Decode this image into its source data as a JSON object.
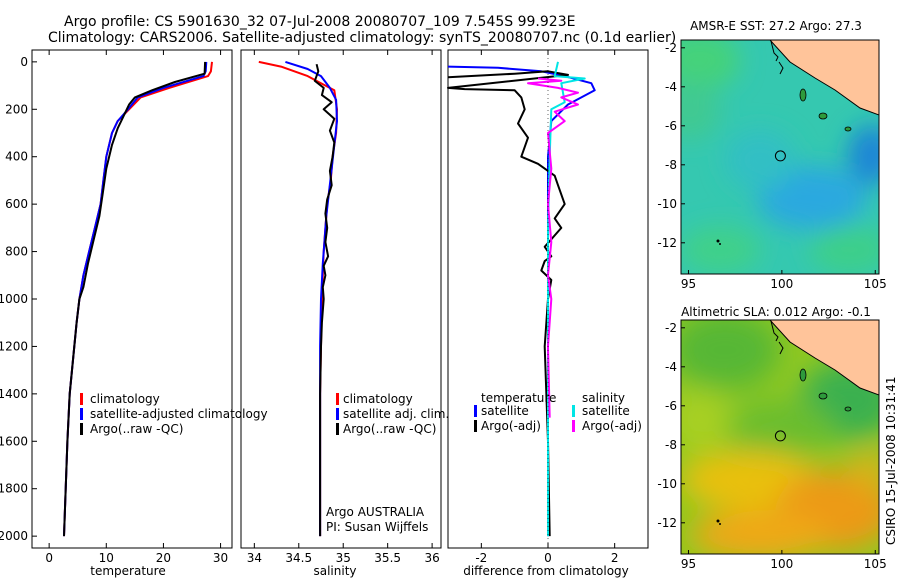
{
  "title_line1": "Argo profile: CS 5901630_32 07-Jul-2008 20080707_109 7.545S 99.923E",
  "title_line2": "Climatology: CARS2006. Satellite-adjusted climatology: synTS_20080707.nc (0.1d earlier)",
  "side_text": "CSIRO 15-Jul-2008 10:31:41",
  "colors": {
    "climatology": "#ff0000",
    "satellite": "#0000ff",
    "argo": "#000000",
    "sal_satellite": "#00e5e5",
    "sal_argo": "#ff00ff"
  },
  "chart_data": [
    {
      "type": "line",
      "id": "temperature",
      "xlabel": "temperature",
      "xlim": [
        -3,
        32
      ],
      "ylim": [
        -50,
        2050
      ],
      "yreversed": true,
      "xticks": [
        "0",
        "10",
        "20",
        "30"
      ],
      "xtick_values": [
        0,
        10,
        20,
        30
      ],
      "yticks": [
        "0",
        "200",
        "400",
        "600",
        "800",
        "1000",
        "1200",
        "1400",
        "1600",
        "1800",
        "2000"
      ],
      "ytick_values": [
        0,
        200,
        400,
        600,
        800,
        1000,
        1200,
        1400,
        1600,
        1800,
        2000
      ],
      "legend": [
        "climatology",
        "satellite-adjusted climatology",
        "Argo(..raw -QC)"
      ],
      "series": [
        {
          "name": "climatology",
          "color": "red",
          "x": [
            28.5,
            28.3,
            27.8,
            21,
            16,
            14,
            12,
            11,
            10,
            9.5,
            9,
            8,
            7,
            6,
            5.3,
            4.8,
            4.4,
            4,
            3.6,
            3.2,
            2.9,
            2.6
          ],
          "y": [
            0,
            40,
            60,
            110,
            150,
            200,
            250,
            300,
            400,
            500,
            600,
            700,
            800,
            900,
            1000,
            1100,
            1200,
            1300,
            1400,
            1600,
            1800,
            2000
          ]
        },
        {
          "name": "satellite-adjusted climatology",
          "color": "blue",
          "x": [
            27.5,
            27.4,
            27,
            20,
            15.5,
            13.8,
            12,
            11,
            10,
            9.5,
            9,
            8,
            7,
            6,
            5.3,
            4.8,
            4.4,
            4,
            3.6,
            3.2,
            2.9,
            2.6
          ],
          "y": [
            0,
            40,
            60,
            110,
            150,
            200,
            250,
            300,
            400,
            500,
            600,
            700,
            800,
            900,
            1000,
            1100,
            1200,
            1300,
            1400,
            1600,
            1800,
            2000
          ]
        },
        {
          "name": "Argo(..raw -QC)",
          "color": "black",
          "x": [
            27.3,
            27.2,
            22,
            18,
            15,
            14,
            13,
            12,
            11,
            10,
            9.4,
            8.8,
            7.8,
            6.8,
            6,
            5.3,
            4.8,
            4.4,
            4,
            3.6,
            3.2,
            2.9,
            2.6
          ],
          "y": [
            0,
            50,
            85,
            120,
            150,
            180,
            230,
            280,
            350,
            450,
            550,
            650,
            750,
            850,
            950,
            1000,
            1100,
            1200,
            1300,
            1400,
            1600,
            1800,
            2000
          ]
        }
      ]
    },
    {
      "type": "line",
      "id": "salinity",
      "xlabel": "salinity",
      "xlim": [
        33.85,
        36.1
      ],
      "ylim": [
        -50,
        2050
      ],
      "yreversed": true,
      "xticks": [
        "34",
        "34.5",
        "35",
        "35.5",
        "36"
      ],
      "xtick_values": [
        34,
        34.5,
        35,
        35.5,
        36
      ],
      "legend": [
        "climatology",
        "satellite adj. clim.",
        "Argo(..raw -QC)"
      ],
      "annotation": [
        "Argo AUSTRALIA",
        "PI: Susan Wijffels"
      ],
      "series": [
        {
          "name": "climatology",
          "color": "red",
          "x": [
            34.05,
            34.3,
            34.6,
            34.75,
            34.9,
            34.93,
            34.92,
            34.88,
            34.86,
            34.82,
            34.8,
            34.78,
            34.76,
            34.75,
            34.74,
            34.74,
            34.74,
            34.74
          ],
          "y": [
            0,
            20,
            60,
            90,
            120,
            200,
            300,
            400,
            500,
            600,
            700,
            800,
            1000,
            1200,
            1400,
            1600,
            1800,
            2000
          ]
        },
        {
          "name": "satellite adj. clim.",
          "color": "blue",
          "x": [
            34.35,
            34.6,
            34.75,
            34.85,
            34.92,
            34.93,
            34.9,
            34.87,
            34.84,
            34.81,
            34.79,
            34.77,
            34.75,
            34.74,
            34.74,
            34.74,
            34.74,
            34.74
          ],
          "y": [
            0,
            30,
            60,
            110,
            160,
            250,
            350,
            450,
            550,
            650,
            750,
            850,
            1000,
            1200,
            1400,
            1600,
            1800,
            2000
          ]
        },
        {
          "name": "Argo(..raw -QC)",
          "color": "black",
          "x": [
            34.7,
            34.72,
            34.68,
            34.78,
            34.76,
            34.87,
            34.78,
            34.9,
            34.85,
            34.9,
            34.88,
            34.85,
            34.87,
            34.82,
            34.8,
            34.82,
            34.8,
            34.83,
            34.78,
            34.8,
            34.77,
            34.78,
            34.76,
            34.75,
            34.74,
            34.74,
            34.74
          ],
          "y": [
            10,
            40,
            80,
            110,
            140,
            170,
            200,
            240,
            290,
            340,
            400,
            460,
            520,
            580,
            640,
            700,
            760,
            820,
            860,
            900,
            950,
            1000,
            1100,
            1200,
            1400,
            1600,
            2000
          ]
        }
      ]
    },
    {
      "type": "line",
      "id": "difference",
      "xlabel": "difference from climatology",
      "xlim": [
        -3,
        3
      ],
      "ylim": [
        -50,
        2050
      ],
      "yreversed": true,
      "xticks": [
        "-2",
        "0",
        "2"
      ],
      "xtick_values": [
        -2,
        0,
        2
      ],
      "legend_left_title": "temperature",
      "legend_right_title": "salinity",
      "legend_left": [
        "satellite",
        "Argo(-adj)"
      ],
      "legend_right": [
        "satellite",
        "Argo(-adj)"
      ],
      "series": [
        {
          "name": "temperature satellite",
          "color": "blue",
          "x": [
            -3,
            -1.5,
            -0.2,
            0.5,
            1.3,
            1.4,
            0.6,
            0.1,
            0.0,
            0.0,
            0.0,
            0.0,
            0.0,
            0.0
          ],
          "y": [
            20,
            25,
            40,
            60,
            90,
            120,
            180,
            250,
            400,
            700,
            1000,
            1400,
            1800,
            2000
          ]
        },
        {
          "name": "temperature Argo(-adj)",
          "color": "black",
          "x": [
            -3,
            -1.0,
            0.0,
            0.6,
            -3,
            -2.5,
            -1.0,
            -0.8,
            -0.7,
            -0.9,
            -0.6,
            -0.8,
            -0.3,
            0.2,
            0.3,
            0.5,
            0.2,
            0.4,
            -0.1,
            0.1,
            -0.1,
            -0.2,
            0.1,
            0.0,
            -0.1,
            0.0,
            0.05
          ],
          "y": [
            65,
            50,
            40,
            55,
            110,
            115,
            120,
            150,
            200,
            260,
            320,
            400,
            430,
            480,
            520,
            600,
            660,
            700,
            780,
            820,
            840,
            880,
            920,
            1000,
            1200,
            1600,
            2000
          ]
        },
        {
          "name": "salinity satellite",
          "color": "cyan",
          "x": [
            0.3,
            0.2,
            1.1,
            0.4,
            0.5,
            0.1,
            0.05,
            0.0,
            0.0,
            0.0,
            0.0,
            0.0
          ],
          "y": [
            0,
            60,
            70,
            90,
            170,
            200,
            400,
            700,
            1000,
            1400,
            1800,
            2000
          ]
        },
        {
          "name": "salinity Argo(-adj)",
          "color": "magenta",
          "x": [
            -0.3,
            0.4,
            -0.6,
            0.3,
            0.9,
            0.4,
            0.9,
            0.2,
            0.5,
            0.0,
            0.1,
            0.0,
            0.1,
            0.0,
            0.1,
            0.0,
            0.05
          ],
          "y": [
            70,
            80,
            90,
            110,
            130,
            150,
            180,
            210,
            250,
            300,
            450,
            600,
            760,
            900,
            1000,
            1200,
            1500
          ]
        }
      ]
    },
    {
      "type": "heatmap",
      "id": "sst_map",
      "title": "AMSR-E SST: 27.2  Argo: 27.3",
      "xticks": [
        "95",
        "100",
        "105"
      ],
      "xtick_values": [
        95,
        100,
        105
      ],
      "yticks": [
        "-2",
        "-4",
        "-6",
        "-8",
        "-10",
        "-12"
      ],
      "ytick_values": [
        -2,
        -4,
        -6,
        -8,
        -10,
        -12
      ],
      "xlim": [
        94.6,
        105.2
      ],
      "ylim": [
        -13.6,
        -1.6
      ],
      "float_position": {
        "lon": 99.923,
        "lat": -7.545
      }
    },
    {
      "type": "heatmap",
      "id": "sla_map",
      "title": "Altimetric SLA: 0.012  Argo: -0.1",
      "xticks": [
        "95",
        "100",
        "105"
      ],
      "xtick_values": [
        95,
        100,
        105
      ],
      "yticks": [
        "-2",
        "-4",
        "-6",
        "-8",
        "-10",
        "-12"
      ],
      "ytick_values": [
        -2,
        -4,
        -6,
        -8,
        -10,
        -12
      ],
      "xlim": [
        94.6,
        105.2
      ],
      "ylim": [
        -13.6,
        -1.6
      ],
      "float_position": {
        "lon": 99.923,
        "lat": -7.545
      }
    }
  ]
}
